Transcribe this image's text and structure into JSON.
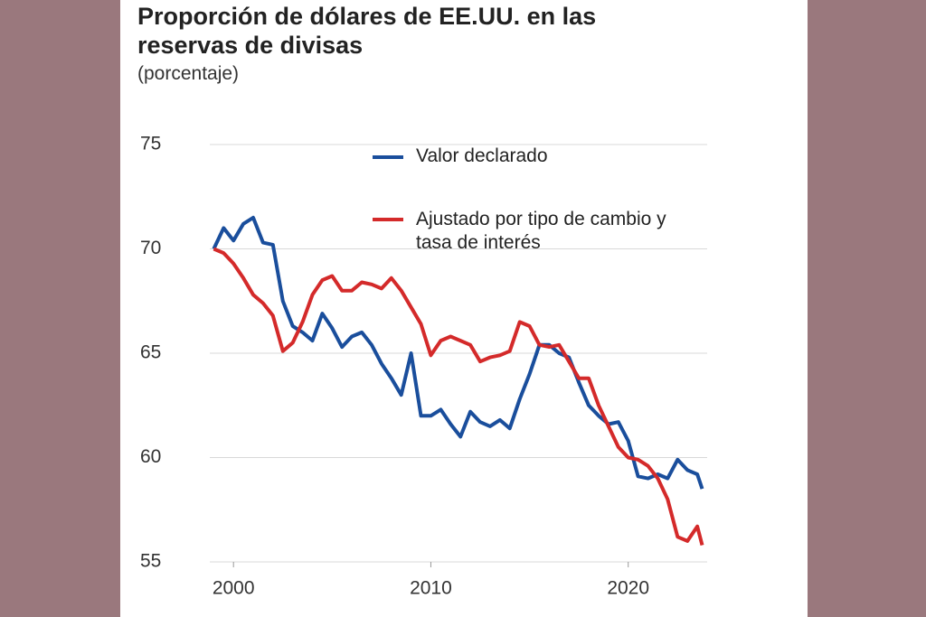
{
  "chart_data": {
    "type": "line",
    "title": "Proporción de dólares de EE.UU. en las reservas de divisas",
    "subtitle": "(porcentaje)",
    "x": [
      1999,
      1999.5,
      2000,
      2000.5,
      2001,
      2001.5,
      2002,
      2002.5,
      2003,
      2003.5,
      2004,
      2004.5,
      2005,
      2005.5,
      2006,
      2006.5,
      2007,
      2007.5,
      2008,
      2008.5,
      2009,
      2009.5,
      2010,
      2010.5,
      2011,
      2011.5,
      2012,
      2012.5,
      2013,
      2013.5,
      2014,
      2014.5,
      2015,
      2015.5,
      2016,
      2016.5,
      2017,
      2017.5,
      2018,
      2018.5,
      2019,
      2019.5,
      2020,
      2020.5,
      2021,
      2021.5,
      2022,
      2022.5,
      2023,
      2023.5,
      2023.75
    ],
    "series": [
      {
        "name": "Valor declarado",
        "color": "#1a4e9c",
        "values": [
          70.0,
          71.0,
          70.4,
          71.2,
          71.5,
          70.3,
          70.2,
          67.5,
          66.3,
          66.0,
          65.6,
          66.9,
          66.2,
          65.3,
          65.8,
          66.0,
          65.4,
          64.5,
          63.8,
          63.0,
          65.0,
          62.0,
          62.0,
          62.3,
          61.6,
          61.0,
          62.2,
          61.7,
          61.5,
          61.8,
          61.4,
          62.8,
          64.0,
          65.4,
          65.4,
          65.0,
          64.8,
          63.6,
          62.5,
          62.0,
          61.6,
          61.7,
          60.8,
          59.1,
          59.0,
          59.2,
          59.0,
          59.9,
          59.4,
          59.2,
          58.5
        ]
      },
      {
        "name": "Ajustado por tipo de cambio y tasa de interés",
        "color": "#d42a2a",
        "values": [
          70.0,
          69.8,
          69.3,
          68.6,
          67.8,
          67.4,
          66.8,
          65.1,
          65.5,
          66.5,
          67.8,
          68.5,
          68.7,
          68.0,
          68.0,
          68.4,
          68.3,
          68.1,
          68.6,
          68.0,
          67.2,
          66.4,
          64.9,
          65.6,
          65.8,
          65.6,
          65.4,
          64.6,
          64.8,
          64.9,
          65.1,
          66.5,
          66.3,
          65.4,
          65.3,
          65.4,
          64.6,
          63.8,
          63.8,
          62.5,
          61.5,
          60.5,
          60.0,
          59.9,
          59.6,
          59.0,
          58.0,
          56.2,
          56.0,
          56.7,
          55.8
        ]
      }
    ],
    "xlim": [
      1998.8,
      2024
    ],
    "xticks": [
      2000,
      2010,
      2020
    ],
    "ylim": [
      55,
      75
    ],
    "yticks": [
      55,
      60,
      65,
      70,
      75
    ],
    "grid": true
  }
}
